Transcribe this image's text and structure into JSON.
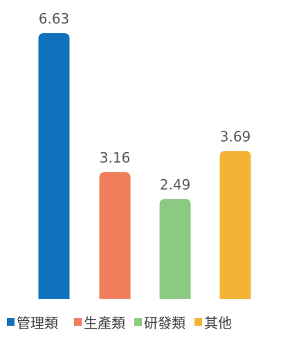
{
  "chart_data": {
    "type": "bar",
    "title": "",
    "xlabel": "",
    "ylabel": "",
    "categories": [
      "管理類",
      "生產類",
      "研發類",
      "其他"
    ],
    "values": [
      6.63,
      3.16,
      2.49,
      3.69
    ],
    "value_labels": [
      "6.63",
      "3.16",
      "2.49",
      "3.69"
    ],
    "colors": [
      "#1072BD",
      "#F07D5C",
      "#8CC982",
      "#F5B335"
    ],
    "ylim": [
      0,
      6.63
    ],
    "grid": false,
    "legend_position": "bottom",
    "axes_visible": false
  }
}
